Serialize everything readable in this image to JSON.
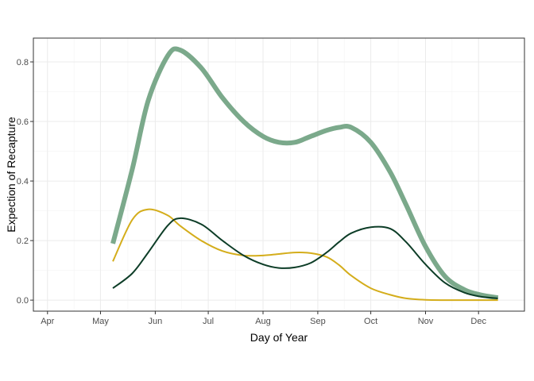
{
  "chart_data": {
    "type": "line",
    "title": "",
    "xlabel": "Day of Year",
    "ylabel": "Expection of Recapture",
    "x_tick_labels": [
      "Apr",
      "May",
      "Jun",
      "Jul",
      "Aug",
      "Sep",
      "Oct",
      "Nov",
      "Dec"
    ],
    "x_ticks": [
      "2000-04-01",
      "2000-05-01",
      "2000-06-01",
      "2000-07-01",
      "2000-08-01",
      "2000-09-01",
      "2000-10-01",
      "2000-11-01",
      "2000-12-01"
    ],
    "xlim": [
      "2000-03-24",
      "2000-12-27"
    ],
    "y_ticks": [
      0.0,
      0.2,
      0.4,
      0.6,
      0.8
    ],
    "y_tick_labels": [
      "0.0",
      "0.2",
      "0.4",
      "0.6",
      "0.8"
    ],
    "ylim": [
      -0.037,
      0.88
    ],
    "grid": true,
    "legend": "none",
    "x": [
      "2000-05-08",
      "2000-05-19",
      "2000-05-28",
      "2000-06-08",
      "2000-06-15",
      "2000-06-27",
      "2000-07-09",
      "2000-07-21",
      "2000-08-01",
      "2000-08-10",
      "2000-08-19",
      "2000-08-28",
      "2000-09-06",
      "2000-09-13",
      "2000-09-20",
      "2000-10-01",
      "2000-10-12",
      "2000-10-21",
      "2000-11-01",
      "2000-11-12",
      "2000-11-23",
      "2000-12-02",
      "2000-12-12"
    ],
    "series": [
      {
        "color": "#7ba98b",
        "width": 6,
        "values": [
          0.19,
          0.44,
          0.67,
          0.82,
          0.84,
          0.78,
          0.68,
          0.6,
          0.55,
          0.53,
          0.53,
          0.55,
          0.57,
          0.58,
          0.58,
          0.53,
          0.43,
          0.32,
          0.18,
          0.08,
          0.035,
          0.018,
          0.008
        ]
      },
      {
        "color": "#d4ad1b",
        "width": 2,
        "values": [
          0.13,
          0.27,
          0.305,
          0.285,
          0.25,
          0.2,
          0.165,
          0.15,
          0.15,
          0.155,
          0.16,
          0.158,
          0.145,
          0.118,
          0.082,
          0.04,
          0.018,
          0.006,
          0.001,
          0.0,
          0.0,
          0.0,
          0.0
        ]
      },
      {
        "color": "#0d3d27",
        "width": 2,
        "values": [
          0.04,
          0.09,
          0.16,
          0.25,
          0.275,
          0.255,
          0.2,
          0.15,
          0.12,
          0.108,
          0.11,
          0.125,
          0.16,
          0.195,
          0.225,
          0.245,
          0.24,
          0.195,
          0.12,
          0.058,
          0.025,
          0.012,
          0.006
        ]
      }
    ]
  }
}
